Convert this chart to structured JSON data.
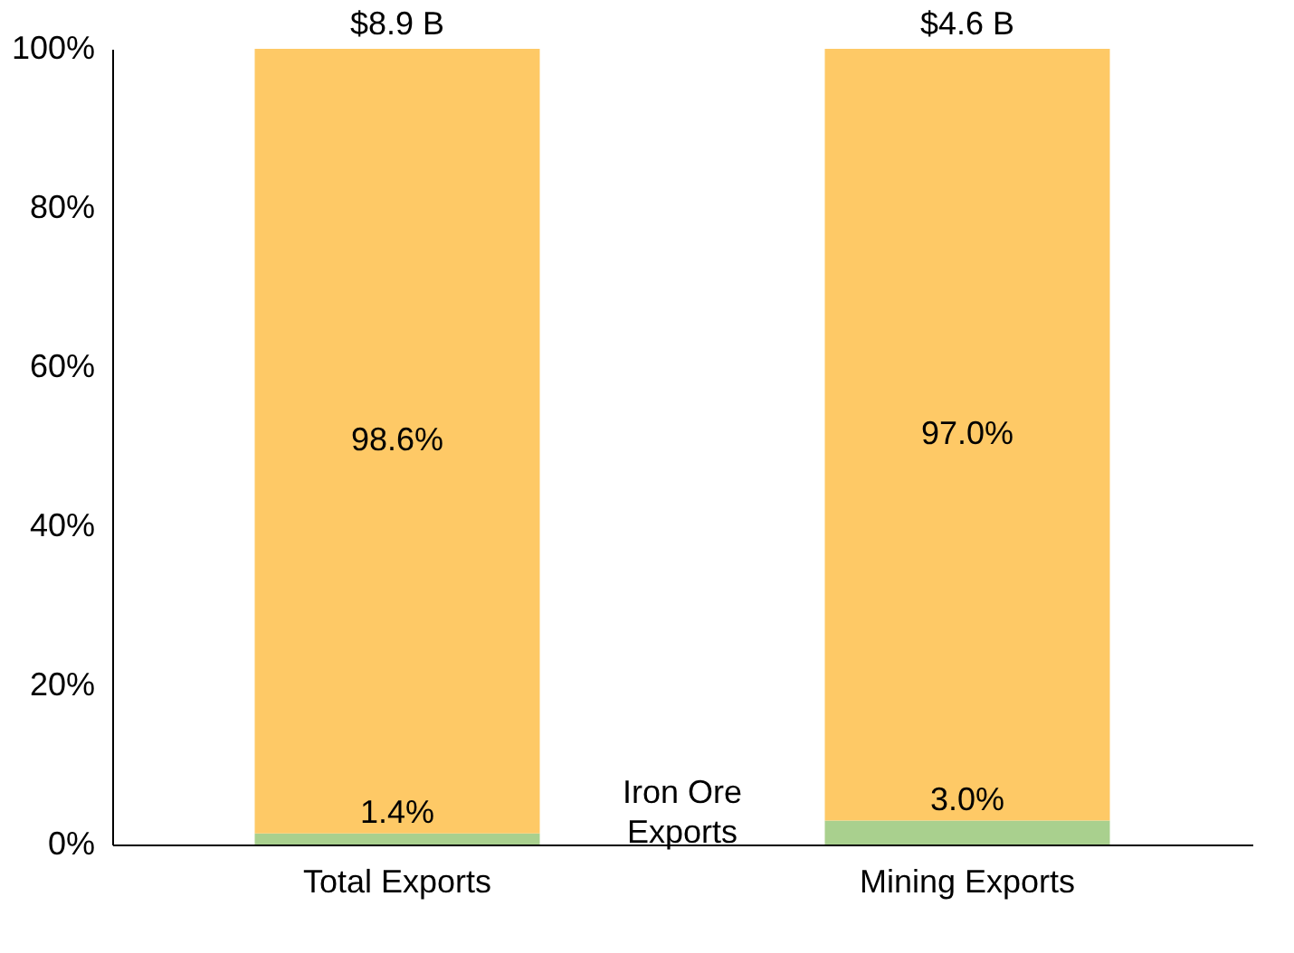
{
  "chart_data": {
    "type": "bar",
    "stacked": true,
    "categories": [
      "Total Exports",
      "Mining Exports"
    ],
    "series": [
      {
        "name": "Iron Ore Exports",
        "color": "#a9d08e",
        "values": [
          1.4,
          3.0
        ],
        "value_labels": [
          "1.4%",
          "3.0%"
        ]
      },
      {
        "color": "#fec966",
        "values": [
          98.6,
          97.0
        ],
        "value_labels": [
          "98.6%",
          "97.0%"
        ]
      }
    ],
    "annotations": [
      {
        "text": "$8.9 B",
        "x": "Total Exports",
        "y": 100
      },
      {
        "text": "$4.6 B",
        "x": "Mining Exports",
        "y": 100
      }
    ],
    "ylim": [
      0,
      100
    ],
    "yticks": [
      {
        "value": 0,
        "label": "0%"
      },
      {
        "value": 20,
        "label": "20%"
      },
      {
        "value": 40,
        "label": "40%"
      },
      {
        "value": 60,
        "label": "60%"
      },
      {
        "value": 80,
        "label": "80%"
      },
      {
        "value": 100,
        "label": "100%"
      }
    ],
    "grid": false,
    "legend": false
  }
}
